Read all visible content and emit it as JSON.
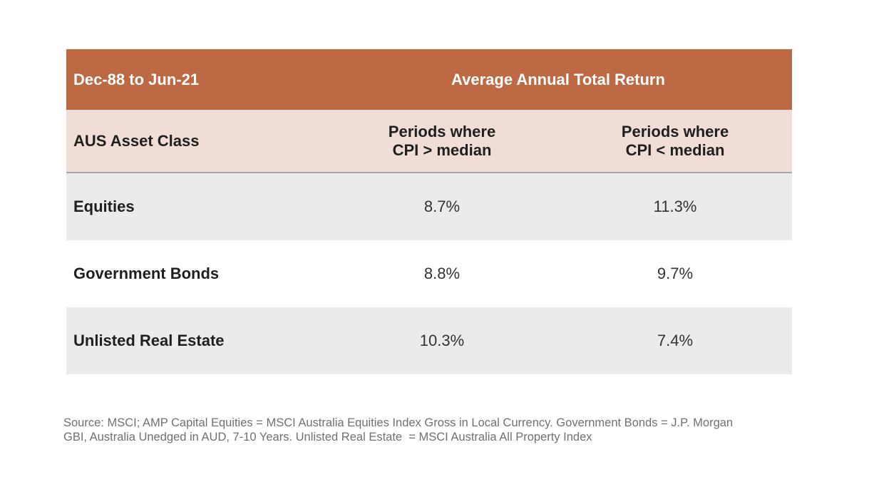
{
  "table": {
    "header": {
      "period": "Dec-88 to Jun-21",
      "title": "Average Annual Total Return"
    },
    "subheader": {
      "label": "AUS Asset Class",
      "col1_line1": "Periods where",
      "col1_line2": "CPI > median",
      "col2_line1": "Periods where",
      "col2_line2": "CPI < median"
    },
    "rows": [
      {
        "asset": "Equities",
        "cpi_above": "8.7%",
        "cpi_below": "11.3%"
      },
      {
        "asset": "Government Bonds",
        "cpi_above": "8.8%",
        "cpi_below": "9.7%"
      },
      {
        "asset": "Unlisted Real Estate",
        "cpi_above": "10.3%",
        "cpi_below": "7.4%"
      }
    ]
  },
  "footer": {
    "source_line1": "Source: MSCI; AMP Capital Equities = MSCI Australia Equities Index Gross in Local Currency. Government Bonds = J.P. Morgan",
    "source_line2": "GBI, Australia Unedged in AUD, 7-10 Years. Unlisted Real Estate  = MSCI Australia All Property Index"
  },
  "colors": {
    "header_bg": "#bd6a44",
    "subheader_bg": "#f0ddd5",
    "shaded_row_bg": "#ebebeb"
  }
}
